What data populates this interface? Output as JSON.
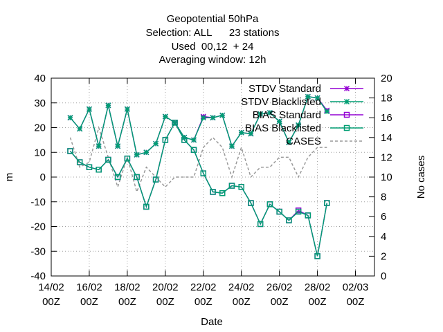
{
  "chart_data": {
    "type": "line",
    "title_lines": [
      "Geopotential 50hPa",
      "Selection: ALL      23 stations",
      "Used  00,12  + 24",
      "Averaging window: 12h"
    ],
    "xlabel": "Date",
    "ylabel": "m",
    "y2label": "No cases",
    "ylim": [
      -40,
      40
    ],
    "y2lim": [
      0,
      20
    ],
    "yticks": [
      "-40",
      "-30",
      "-20",
      "-10",
      "0",
      "10",
      "20",
      "30",
      "40"
    ],
    "y2ticks": [
      "0",
      "2",
      "4",
      "6",
      "8",
      "10",
      "12",
      "14",
      "16",
      "18",
      "20"
    ],
    "xlim_days": [
      14,
      31
    ],
    "xticks": [
      {
        "day": 14,
        "date": "14/02",
        "time": "00Z"
      },
      {
        "day": 16,
        "date": "16/02",
        "time": "00Z"
      },
      {
        "day": 18,
        "date": "18/02",
        "time": "00Z"
      },
      {
        "day": 20,
        "date": "20/02",
        "time": "00Z"
      },
      {
        "day": 22,
        "date": "22/02",
        "time": "00Z"
      },
      {
        "day": 24,
        "date": "24/02",
        "time": "00Z"
      },
      {
        "day": 26,
        "date": "26/02",
        "time": "00Z"
      },
      {
        "day": 28,
        "date": "28/02",
        "time": "00Z"
      },
      {
        "day": 30,
        "date": "02/03",
        "time": "00Z"
      }
    ],
    "x": [
      15.0,
      15.5,
      16.0,
      16.5,
      17.0,
      17.5,
      18.0,
      18.5,
      19.0,
      19.5,
      20.0,
      20.5,
      21.0,
      21.5,
      22.0,
      22.5,
      23.0,
      23.5,
      24.0,
      24.5,
      25.0,
      25.5,
      26.0,
      26.5,
      27.0,
      27.5,
      28.0,
      28.5
    ],
    "grid": true,
    "legend_position": "top-right",
    "series": [
      {
        "name": "STDV Standard",
        "color": "#9400d3",
        "marker": "star",
        "axis": "y",
        "values": [
          24,
          19.5,
          27.5,
          12.5,
          29,
          12.5,
          27.5,
          9,
          10,
          13.5,
          24.5,
          22,
          16,
          15,
          24.5,
          24,
          25,
          12.5,
          18,
          17.5,
          25.5,
          26,
          22.5,
          14,
          21,
          32.5,
          32,
          27
        ]
      },
      {
        "name": "STDV Blacklisted",
        "color": "#009e73",
        "marker": "star",
        "axis": "y",
        "values": [
          24,
          19.5,
          27.5,
          12.5,
          29,
          12.5,
          27.5,
          9,
          10,
          13.5,
          24.5,
          22,
          16,
          15,
          24,
          24,
          25,
          12.5,
          18,
          17.5,
          25.5,
          26,
          22.5,
          14,
          21,
          32.5,
          32,
          26.5
        ]
      },
      {
        "name": "BIAS Standard",
        "color": "#9400d3",
        "marker": "square",
        "axis": "y",
        "values": [
          10.5,
          6,
          4,
          3,
          7,
          0,
          7.5,
          0,
          -12,
          -1,
          15,
          22,
          15,
          11,
          1.5,
          -6,
          -6.5,
          -3.5,
          -4,
          -10.5,
          -19,
          -11,
          -14,
          -17.5,
          -13.5,
          -15.5,
          -32,
          -10.5
        ]
      },
      {
        "name": "BIAS Blacklisted",
        "color": "#009e73",
        "marker": "square",
        "axis": "y",
        "values": [
          10.5,
          6,
          4,
          3,
          7,
          0,
          7.5,
          0,
          -12,
          -1,
          15,
          22,
          15,
          11,
          1.5,
          -6,
          -6.5,
          -3.5,
          -4,
          -10.5,
          -19,
          -11,
          -14,
          -17.5,
          -14,
          -15.5,
          -32,
          -10.5
        ]
      },
      {
        "name": "CASES",
        "color": "#999999",
        "marker": "none",
        "dashed": true,
        "axis": "y2",
        "x": [
          15.0,
          15.5,
          16.0,
          16.5,
          17.0,
          17.5,
          18.0,
          18.5,
          19.0,
          19.5,
          20.0,
          20.5,
          21.0,
          21.5,
          22.0,
          22.5,
          23.0,
          23.5,
          24.0,
          24.5,
          25.0,
          25.5,
          26.0,
          26.5,
          27.0,
          27.5,
          28.0,
          28.5
        ],
        "values": [
          14,
          11,
          11.5,
          15,
          12,
          9,
          12,
          8.5,
          11,
          10,
          9,
          10,
          10,
          10,
          13,
          14,
          13,
          10,
          13,
          10,
          11,
          11,
          12,
          12,
          10,
          12,
          13,
          13
        ]
      }
    ]
  }
}
